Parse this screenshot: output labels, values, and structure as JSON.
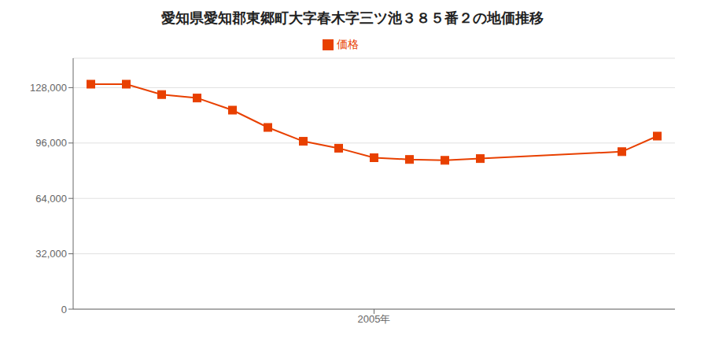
{
  "chart_data": {
    "type": "line",
    "title": "愛知県愛知郡東郷町大字春木字三ツ池３８５番２の地価推移",
    "x": [
      1997,
      1998,
      1999,
      2000,
      2001,
      2002,
      2003,
      2004,
      2005,
      2006,
      2007,
      2008,
      2012,
      2013
    ],
    "series": [
      {
        "name": "価格",
        "color": "#E84000",
        "marker": "square",
        "values": [
          130000,
          130000,
          124000,
          122000,
          115000,
          105000,
          97000,
          93000,
          87500,
          86500,
          86000,
          87000,
          91000,
          100000
        ]
      }
    ],
    "xlim": [
      1996.5,
      2013.5
    ],
    "xticks": [
      {
        "value": 2005,
        "label": "2005年"
      }
    ],
    "ylim": [
      0,
      145000
    ],
    "yticks": [
      0,
      {
        "value": 32000,
        "label": "32,000"
      },
      {
        "value": 64000,
        "label": "64,000"
      },
      {
        "value": 96000,
        "label": "96,000"
      },
      {
        "value": 128000,
        "label": "128,000"
      }
    ],
    "grid": true,
    "legend": "top"
  }
}
